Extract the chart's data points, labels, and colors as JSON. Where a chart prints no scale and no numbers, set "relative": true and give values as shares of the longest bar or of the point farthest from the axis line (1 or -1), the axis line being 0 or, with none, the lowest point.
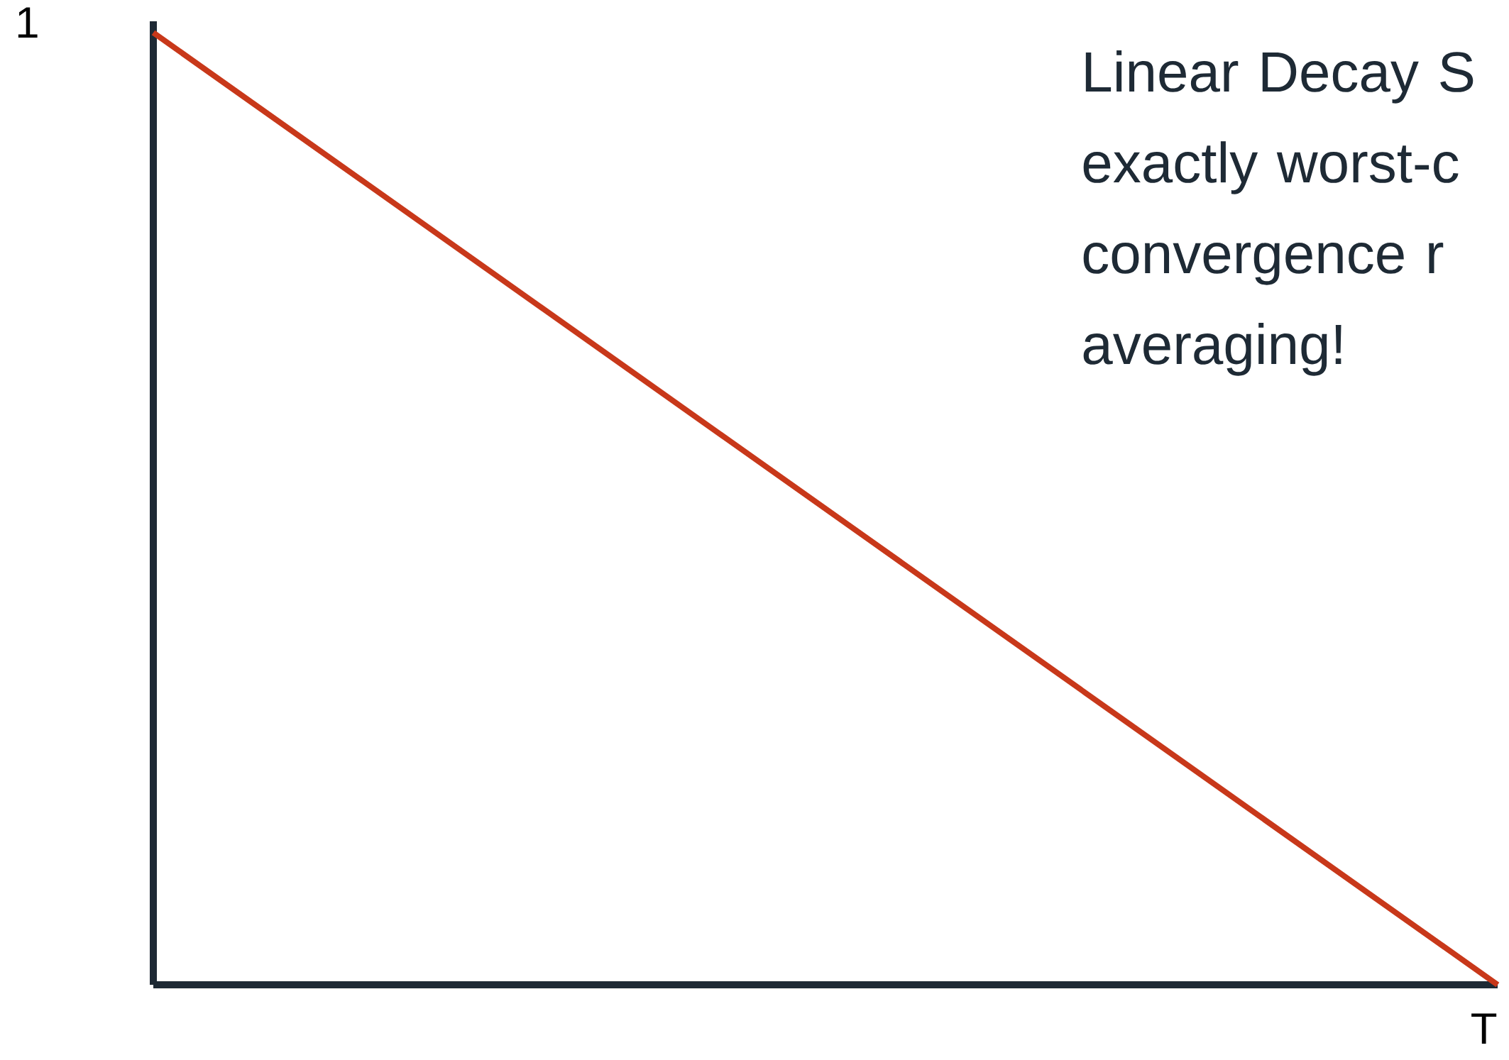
{
  "chart_data": {
    "type": "line",
    "relative": true,
    "xlabel": "T",
    "ylabel": "1",
    "categories": [
      null,
      null
    ],
    "series": [
      {
        "color": "#c8381a",
        "values": [
          1,
          0
        ]
      }
    ],
    "annotations": [
      "Linear Decay S exactly worst-c convergence r averaging!"
    ]
  }
}
